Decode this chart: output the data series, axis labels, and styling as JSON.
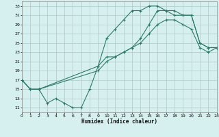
{
  "xlabel": "Humidex (Indice chaleur)",
  "background_color": "#d6f0ef",
  "grid_color": "#b0c8c8",
  "line_color": "#2a7a6a",
  "xlim": [
    0,
    23
  ],
  "ylim": [
    10,
    34
  ],
  "xticks": [
    0,
    1,
    2,
    3,
    4,
    5,
    6,
    7,
    8,
    9,
    10,
    11,
    12,
    13,
    14,
    15,
    16,
    17,
    18,
    19,
    20,
    21,
    22,
    23
  ],
  "yticks": [
    11,
    13,
    15,
    17,
    19,
    21,
    23,
    25,
    27,
    29,
    31,
    33
  ],
  "line1_x": [
    0,
    1,
    2,
    3,
    4,
    5,
    6,
    7,
    8,
    9,
    10,
    11,
    12,
    13,
    14,
    15,
    16,
    17,
    18,
    19,
    20,
    21,
    22,
    23
  ],
  "line1_y": [
    17,
    15,
    15,
    12,
    13,
    12,
    11,
    11,
    15,
    20,
    26,
    28,
    30,
    32,
    32,
    33,
    33,
    32,
    32,
    31,
    31,
    25,
    24,
    24
  ],
  "line2_x": [
    0,
    1,
    2,
    9,
    10,
    11,
    12,
    13,
    14,
    15,
    16,
    17,
    18,
    19,
    20,
    21,
    22,
    23
  ],
  "line2_y": [
    17,
    15,
    15,
    20,
    22,
    22,
    23,
    24,
    26,
    29,
    32,
    32,
    31,
    31,
    31,
    25,
    24,
    24
  ],
  "line3_x": [
    0,
    1,
    2,
    9,
    10,
    11,
    12,
    13,
    14,
    15,
    16,
    17,
    18,
    19,
    20,
    21,
    22,
    23
  ],
  "line3_y": [
    17,
    15,
    15,
    19,
    21,
    22,
    23,
    24,
    25,
    27,
    29,
    30,
    30,
    29,
    28,
    24,
    23,
    24
  ]
}
